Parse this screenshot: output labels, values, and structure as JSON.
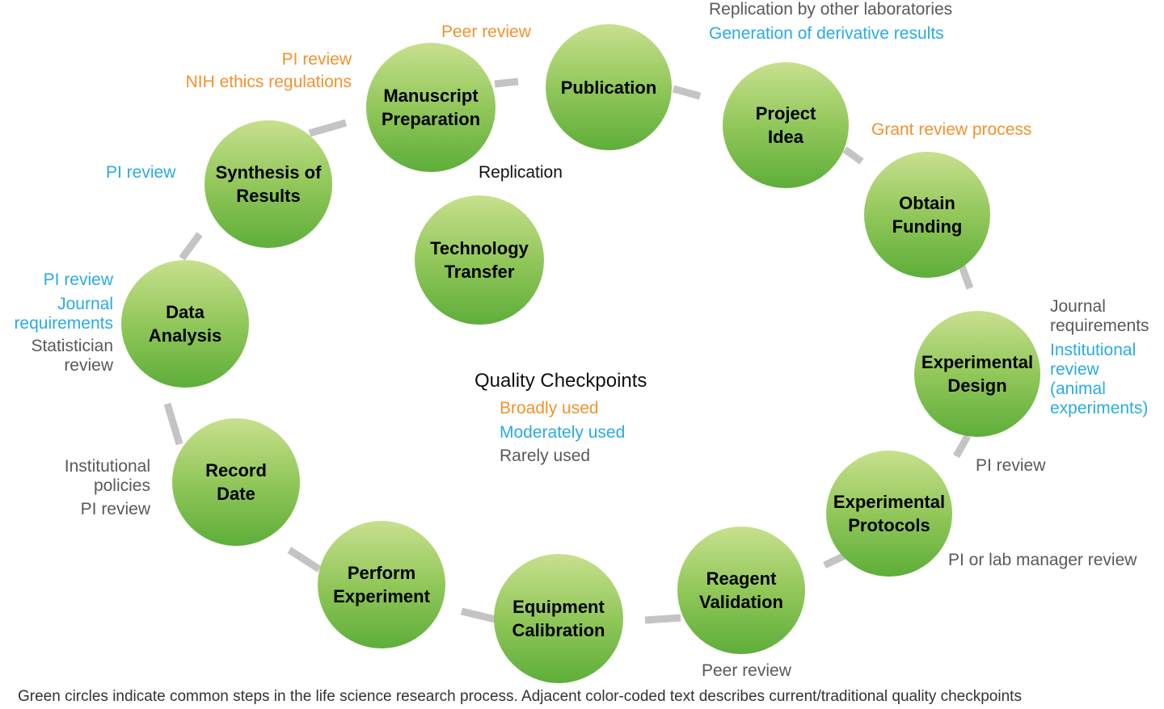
{
  "colors": {
    "broadly": "#f0922e",
    "moderately": "#29abe2",
    "rarely": "#595959",
    "connector": "#c4c4c4"
  },
  "nodes": [
    {
      "id": "manuscript-preparation",
      "label": "Manuscript Preparation"
    },
    {
      "id": "publication",
      "label": "Publication"
    },
    {
      "id": "project-idea",
      "label": "Project Idea"
    },
    {
      "id": "obtain-funding",
      "label": "Obtain Funding"
    },
    {
      "id": "experimental-design",
      "label": "Experimental Design"
    },
    {
      "id": "experimental-protocols",
      "label": "Experimental Protocols"
    },
    {
      "id": "reagent-validation",
      "label": "Reagent Validation"
    },
    {
      "id": "equipment-calibration",
      "label": "Equipment Calibration"
    },
    {
      "id": "perform-experiment",
      "label": "Perform Experiment"
    },
    {
      "id": "record-date",
      "label": "Record Date"
    },
    {
      "id": "data-analysis",
      "label": "Data Analysis"
    },
    {
      "id": "synthesis-of-results",
      "label": "Synthesis of Results"
    },
    {
      "id": "technology-transfer",
      "label": "Technology Transfer"
    }
  ],
  "checkpoints": [
    {
      "text": "Peer review",
      "level": "orange"
    },
    {
      "text": "PI review",
      "level": "orange"
    },
    {
      "text": "NIH ethics regulations",
      "level": "orange"
    },
    {
      "text": "Replication by other laboratories",
      "level": "gray"
    },
    {
      "text": "Generation of derivative results",
      "level": "blue"
    },
    {
      "text": "Grant review process",
      "level": "orange"
    },
    {
      "text": "Journal requirements",
      "level": "gray"
    },
    {
      "text": "Institutional review (animal experiments)",
      "level": "blue"
    },
    {
      "text": "PI review",
      "level": "gray"
    },
    {
      "text": "PI or lab manager review",
      "level": "gray"
    },
    {
      "text": "Peer review",
      "level": "gray"
    },
    {
      "text": "Institutional policies",
      "level": "gray"
    },
    {
      "text": "PI review",
      "level": "gray"
    },
    {
      "text": "PI review",
      "level": "blue"
    },
    {
      "text": "Journal requirements",
      "level": "blue"
    },
    {
      "text": "Statistician review",
      "level": "gray"
    },
    {
      "text": "PI review",
      "level": "blue"
    },
    {
      "text": "Replication",
      "level": "black"
    }
  ],
  "legend": {
    "title": "Quality Checkpoints",
    "items": [
      "Broadly used",
      "Moderately used",
      "Rarely used"
    ]
  },
  "caption": "Green circles indicate common steps in the life science research process. Adjacent color-coded text describes current/traditional quality checkpoints"
}
